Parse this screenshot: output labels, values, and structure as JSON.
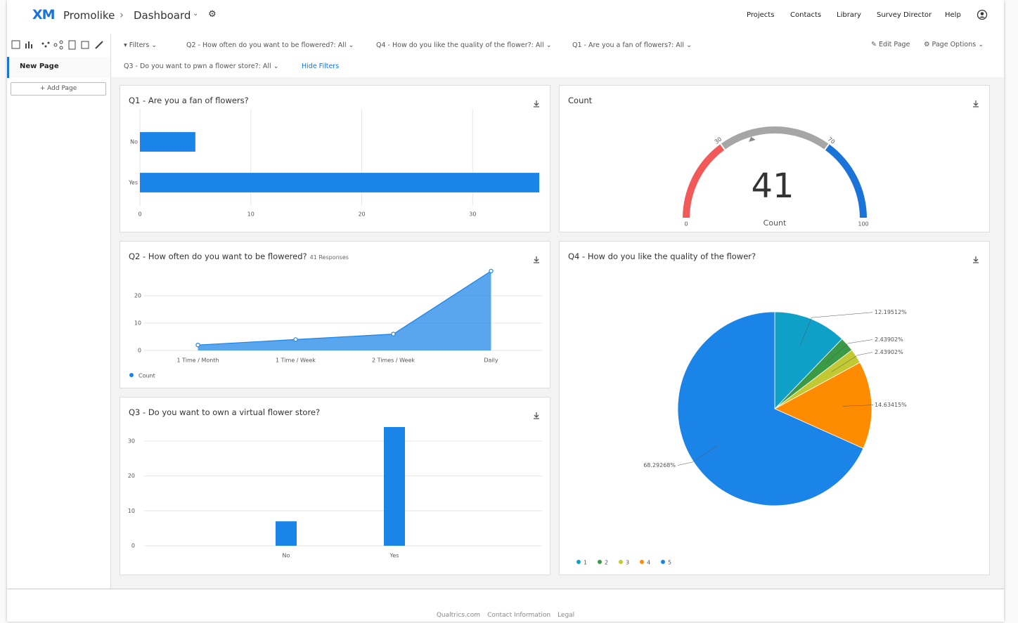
{
  "header": {
    "logo": "XM",
    "brand": "Promolike",
    "page": "Dashboard",
    "nav": [
      "Projects",
      "Contacts",
      "Library",
      "Survey Director",
      "Help"
    ]
  },
  "sidebar": {
    "pages": [
      "New Page"
    ],
    "add_page": "Add Page"
  },
  "filters": {
    "label": "Filters",
    "items": [
      "Q2 - How often do you want to be flowered?: All",
      "Q4 - How do you like the quality of the flower?: All",
      "Q1 - Are you a fan of flowers?: All",
      "Q3 - Do you want to pwn a flower store?: All"
    ],
    "hide": "Hide Filters",
    "edit_page": "Edit Page",
    "page_options": "Page Options"
  },
  "chart_data": [
    {
      "type": "bar",
      "orientation": "horizontal",
      "title": "Q1 - Are you a fan of flowers?",
      "categories": [
        "No",
        "Yes"
      ],
      "values": [
        5,
        36
      ],
      "color": "#1a84e8",
      "xlim": [
        0,
        36
      ],
      "xticks": [
        0,
        10,
        20,
        30
      ],
      "grid": true
    },
    {
      "type": "gauge",
      "title": "Count",
      "value": 41,
      "label": "Count",
      "lim": [
        0,
        100
      ],
      "ticks": [
        0,
        30,
        70,
        100
      ],
      "band_colors": [
        "#f25a5a",
        "#a6a6a6",
        "#1a73d9"
      ]
    },
    {
      "type": "area",
      "title": "Q2 - How often do you want to be flowered?",
      "subtitle": "41 Responses",
      "categories": [
        "1 Time / Month",
        "1 Time / Week",
        "2 Times / Week",
        "Daily"
      ],
      "series": [
        {
          "name": "Count",
          "color": "#1a84e8",
          "values": [
            2,
            4,
            6,
            29
          ]
        }
      ],
      "ylim": [
        0,
        30
      ],
      "yticks": [
        0,
        10,
        20
      ],
      "grid": true
    },
    {
      "type": "bar",
      "orientation": "vertical",
      "title": "Q3 - Do you want to own a virtual flower store?",
      "categories": [
        "No",
        "Yes"
      ],
      "values": [
        7,
        34
      ],
      "color": "#1a84e8",
      "ylim": [
        0,
        34
      ],
      "yticks": [
        0,
        10,
        20,
        30
      ],
      "grid": true
    },
    {
      "type": "pie",
      "title": "Q4 - How do you like the quality of the flower?",
      "categories": [
        "1",
        "2",
        "3",
        "4",
        "5"
      ],
      "values": [
        12.19512,
        2.43902,
        2.43902,
        14.63415,
        68.29268
      ],
      "value_labels": [
        "12.19512%",
        "2.43902%",
        "2.43902%",
        "14.63415%",
        "68.29268%"
      ],
      "colors": [
        "#0ea0c6",
        "#3b9a45",
        "#c2c933",
        "#ff8c00",
        "#1a84e8"
      ]
    }
  ],
  "footer": {
    "links": [
      "Qualtrics.com",
      "Contact Information",
      "Legal"
    ]
  }
}
